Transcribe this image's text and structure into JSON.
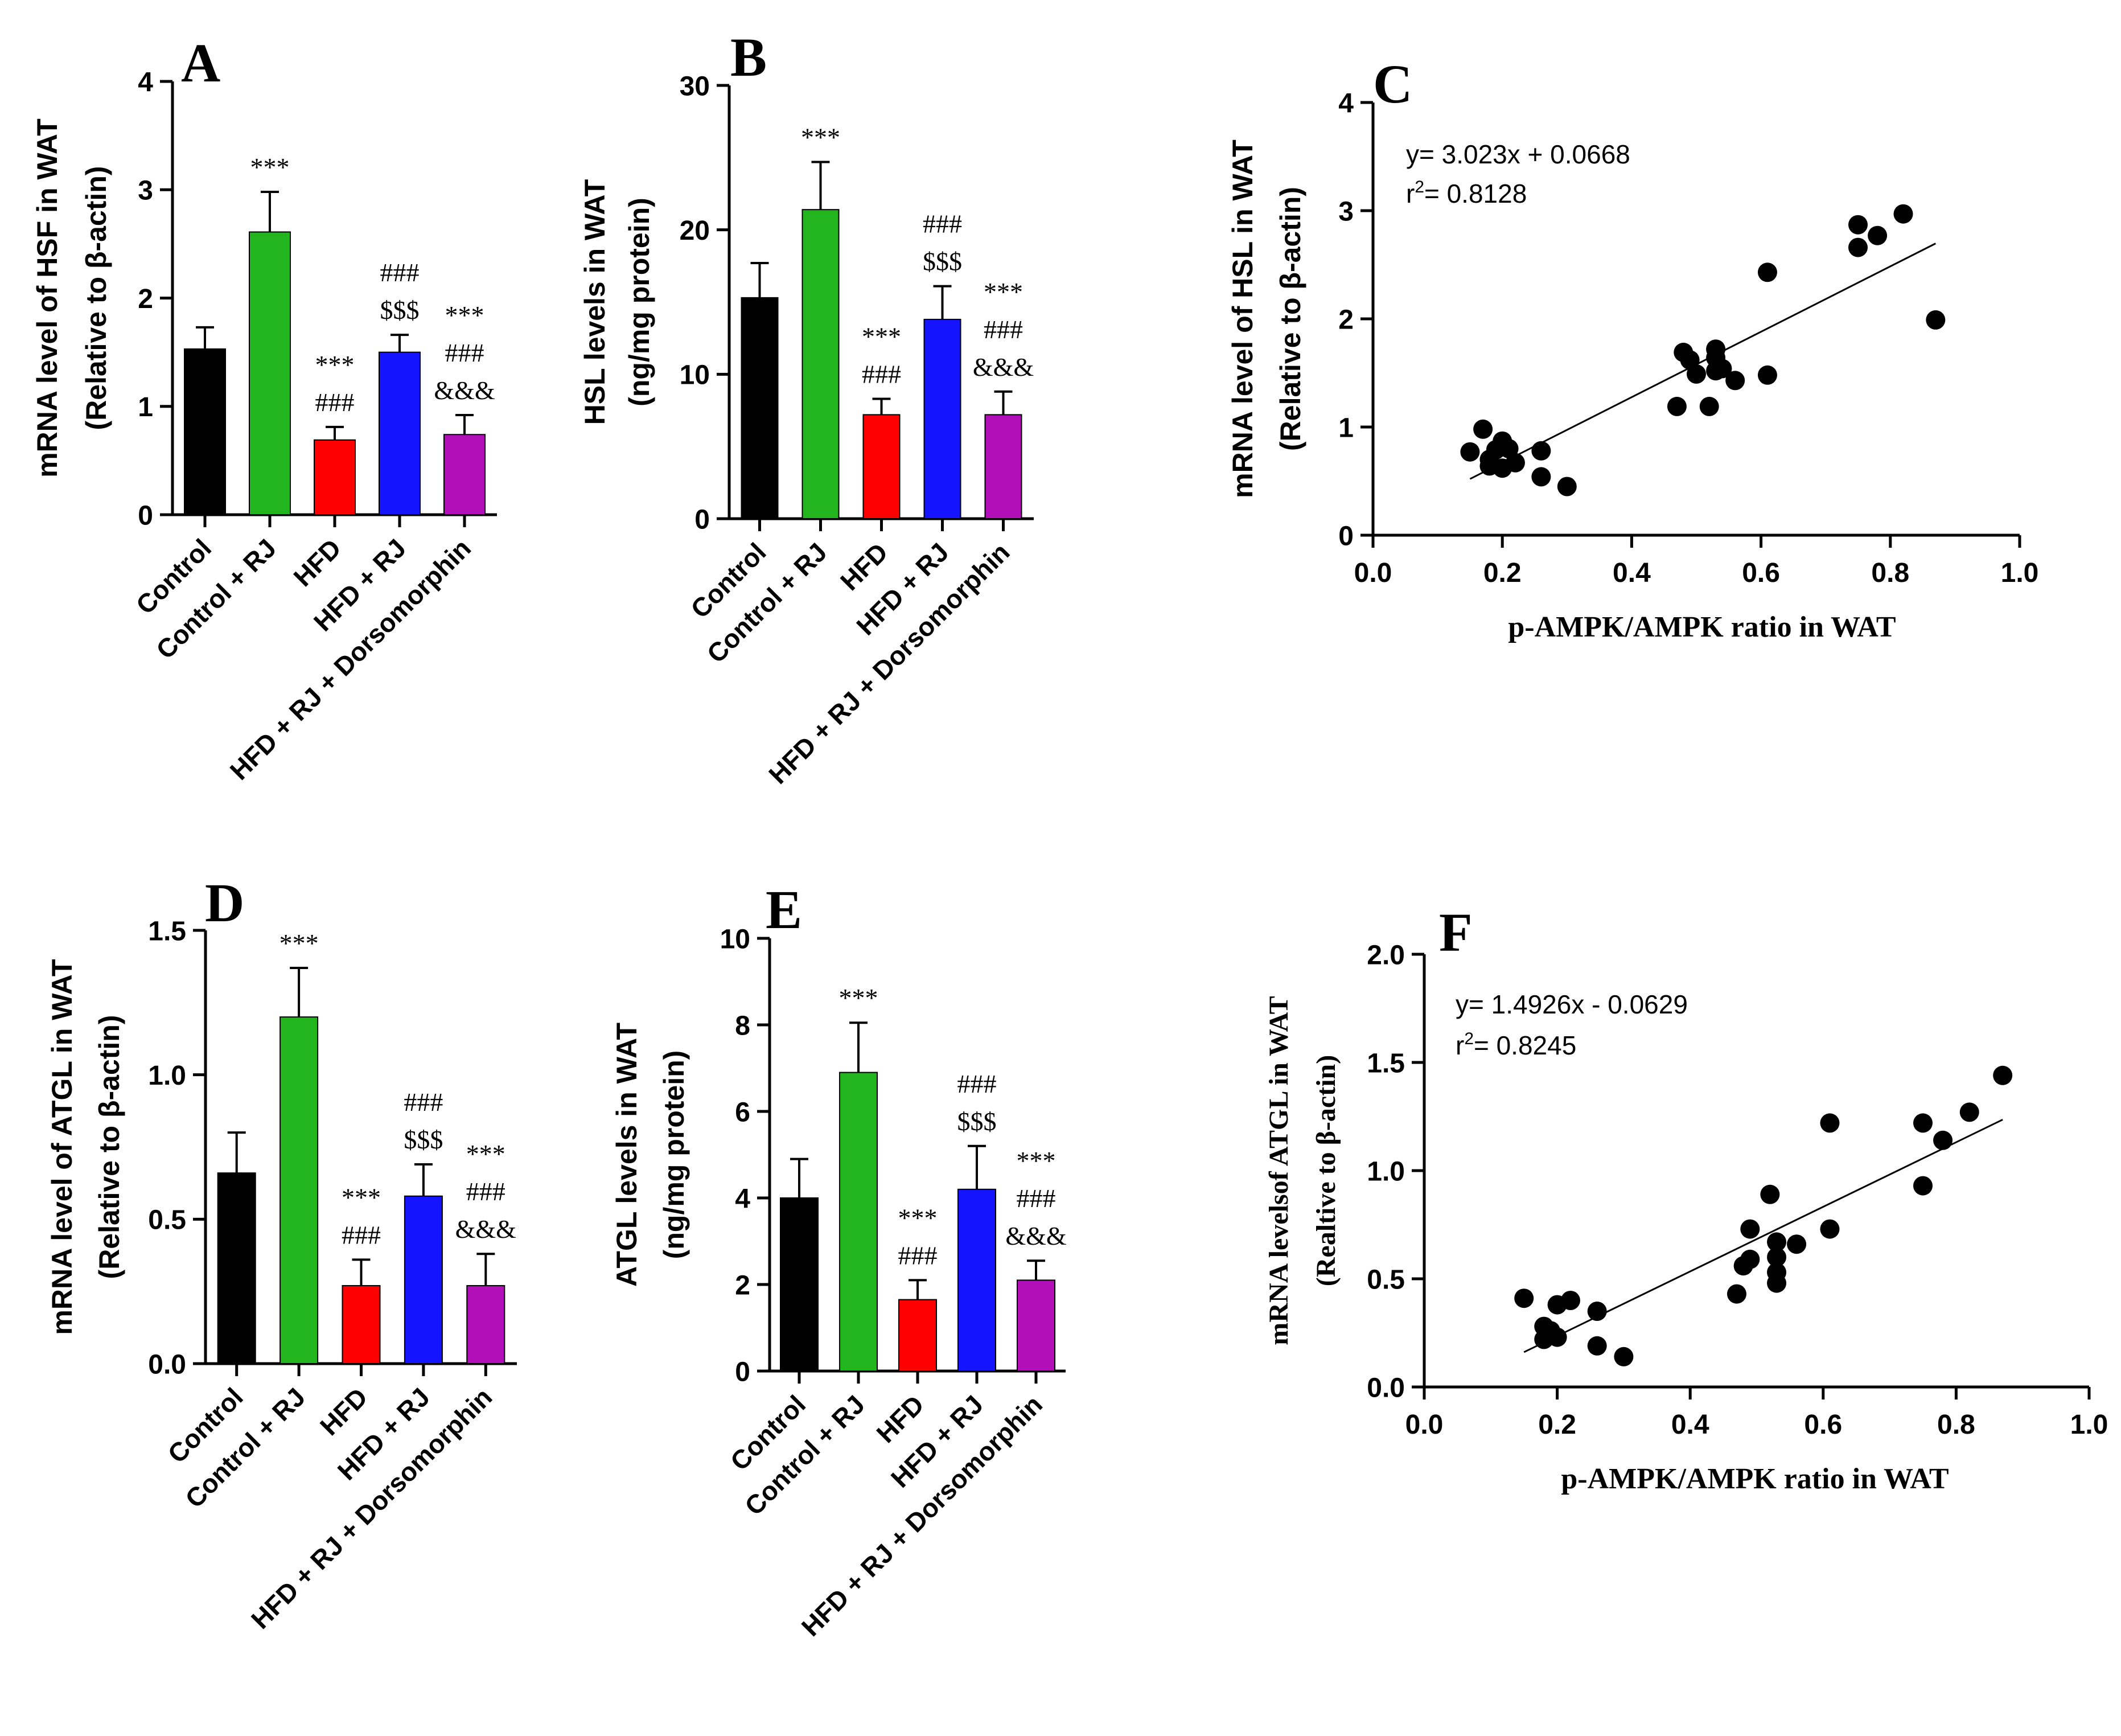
{
  "chart_data": [
    {
      "panel": "A",
      "type": "bar",
      "ylabel_lines": [
        "mRNA level of HSF in WAT",
        "(Relative to β-actin)"
      ],
      "ylim": [
        0,
        4
      ],
      "yticks": [
        0,
        1,
        2,
        3,
        4
      ],
      "categories": [
        "Control",
        "Control + RJ",
        "HFD",
        "HFD + RJ",
        "HFD + RJ + Dorsomorphin"
      ],
      "values": [
        1.53,
        2.61,
        0.69,
        1.5,
        0.74
      ],
      "errors": [
        0.2,
        0.37,
        0.12,
        0.16,
        0.18
      ],
      "colors": [
        "#000000",
        "#22b51d",
        "#ff0000",
        "#1414ff",
        "#b30fb8"
      ],
      "annotations": [
        [],
        [
          "***"
        ],
        [
          "***",
          "###"
        ],
        [
          "###",
          "$$$"
        ],
        [
          "***",
          "###",
          "&&&"
        ]
      ]
    },
    {
      "panel": "B",
      "type": "bar",
      "ylabel_lines": [
        "HSL levels in WAT",
        "(ng/mg protein)"
      ],
      "ylim": [
        0,
        30
      ],
      "yticks": [
        0,
        10,
        20,
        30
      ],
      "categories": [
        "Control",
        "Control + RJ",
        "HFD",
        "HFD + RJ",
        "HFD + RJ + Dorsomorphin"
      ],
      "values": [
        15.3,
        21.4,
        7.2,
        13.8,
        7.2
      ],
      "errors": [
        2.4,
        3.3,
        1.1,
        2.3,
        1.6
      ],
      "colors": [
        "#000000",
        "#22b51d",
        "#ff0000",
        "#1414ff",
        "#b30fb8"
      ],
      "annotations": [
        [],
        [
          "***"
        ],
        [
          "***",
          "###"
        ],
        [
          "###",
          "$$$"
        ],
        [
          "***",
          "###",
          "&&&"
        ]
      ]
    },
    {
      "panel": "C",
      "type": "scatter",
      "xlabel": "p-AMPK/AMPK ratio in  WAT",
      "ylabel_lines": [
        "mRNA level of HSL in WAT",
        "(Relative to β-actin)"
      ],
      "xlim": [
        0,
        1.0
      ],
      "ylim": [
        0,
        4
      ],
      "xticks": [
        "0.0",
        "0.2",
        "0.4",
        "0.6",
        "0.8",
        "1.0"
      ],
      "yticks": [
        0,
        1,
        2,
        3,
        4
      ],
      "equation": "y= 3.023x + 0.0668",
      "r2_prefix": "r",
      "r2_sup": "2",
      "r2_value": "= 0.8128",
      "fit": {
        "slope": 3.023,
        "intercept": 0.0668,
        "x_range": [
          0.15,
          0.87
        ]
      },
      "points": [
        [
          0.15,
          0.77
        ],
        [
          0.17,
          0.98
        ],
        [
          0.18,
          0.7
        ],
        [
          0.18,
          0.64
        ],
        [
          0.19,
          0.79
        ],
        [
          0.2,
          0.87
        ],
        [
          0.2,
          0.62
        ],
        [
          0.21,
          0.8
        ],
        [
          0.22,
          0.67
        ],
        [
          0.26,
          0.78
        ],
        [
          0.26,
          0.54
        ],
        [
          0.3,
          0.45
        ],
        [
          0.47,
          1.19
        ],
        [
          0.48,
          1.69
        ],
        [
          0.49,
          1.62
        ],
        [
          0.5,
          1.49
        ],
        [
          0.52,
          1.19
        ],
        [
          0.53,
          1.72
        ],
        [
          0.53,
          1.64
        ],
        [
          0.53,
          1.52
        ],
        [
          0.54,
          1.54
        ],
        [
          0.56,
          1.43
        ],
        [
          0.61,
          1.48
        ],
        [
          0.61,
          2.43
        ],
        [
          0.75,
          2.87
        ],
        [
          0.75,
          2.66
        ],
        [
          0.78,
          2.77
        ],
        [
          0.82,
          2.97
        ],
        [
          0.87,
          1.99
        ]
      ]
    },
    {
      "panel": "D",
      "type": "bar",
      "ylabel_lines": [
        "mRNA level of ATGL in WAT",
        "(Relative to β-actin)"
      ],
      "ylim": [
        0,
        1.5
      ],
      "yticks": [
        "0.0",
        "0.5",
        "1.0",
        "1.5"
      ],
      "categories": [
        "Control",
        "Control + RJ",
        "HFD",
        "HFD + RJ",
        "HFD + RJ + Dorsomorphin"
      ],
      "values": [
        0.66,
        1.2,
        0.27,
        0.58,
        0.27
      ],
      "errors": [
        0.14,
        0.17,
        0.09,
        0.11,
        0.11
      ],
      "colors": [
        "#000000",
        "#22b51d",
        "#ff0000",
        "#1414ff",
        "#b30fb8"
      ],
      "annotations": [
        [],
        [
          "***"
        ],
        [
          "***",
          "###"
        ],
        [
          "###",
          "$$$"
        ],
        [
          "***",
          "###",
          "&&&"
        ]
      ]
    },
    {
      "panel": "E",
      "type": "bar",
      "ylabel_lines": [
        "ATGL levels in WAT",
        "(ng/mg protein)"
      ],
      "ylim": [
        0,
        10
      ],
      "yticks": [
        0,
        2,
        4,
        6,
        8,
        10
      ],
      "categories": [
        "Control",
        "Control + RJ",
        "HFD",
        "HFD + RJ",
        "HFD + RJ + Dorsomorphin"
      ],
      "values": [
        4.0,
        6.9,
        1.65,
        4.2,
        2.1
      ],
      "errors": [
        0.9,
        1.15,
        0.45,
        1.0,
        0.45
      ],
      "colors": [
        "#000000",
        "#22b51d",
        "#ff0000",
        "#1414ff",
        "#b30fb8"
      ],
      "annotations": [
        [],
        [
          "***"
        ],
        [
          "***",
          "###"
        ],
        [
          "###",
          "$$$"
        ],
        [
          "***",
          "###",
          "&&&"
        ]
      ]
    },
    {
      "panel": "F",
      "type": "scatter",
      "xlabel": "p-AMPK/AMPK ratio in  WAT",
      "ylabel_lines": [
        "mRNA levelsof ATGL in WAT",
        "(Realtive to β-actin)"
      ],
      "xlim": [
        0,
        1.0
      ],
      "ylim": [
        0,
        2.0
      ],
      "xticks": [
        "0.0",
        "0.2",
        "0.4",
        "0.6",
        "0.8",
        "1.0"
      ],
      "yticks": [
        "0.0",
        "0.5",
        "1.0",
        "1.5",
        "2.0"
      ],
      "equation": "y= 1.4926x - 0.0629",
      "r2_prefix": "r",
      "r2_sup": "2",
      "r2_value": "= 0.8245",
      "fit": {
        "slope": 1.4926,
        "intercept": -0.0629,
        "x_range": [
          0.15,
          0.87
        ]
      },
      "points": [
        [
          0.15,
          0.41
        ],
        [
          0.18,
          0.28
        ],
        [
          0.18,
          0.22
        ],
        [
          0.19,
          0.26
        ],
        [
          0.2,
          0.23
        ],
        [
          0.2,
          0.38
        ],
        [
          0.22,
          0.4
        ],
        [
          0.26,
          0.35
        ],
        [
          0.26,
          0.19
        ],
        [
          0.3,
          0.14
        ],
        [
          0.47,
          0.43
        ],
        [
          0.48,
          0.56
        ],
        [
          0.49,
          0.59
        ],
        [
          0.49,
          0.73
        ],
        [
          0.52,
          0.89
        ],
        [
          0.53,
          0.6
        ],
        [
          0.53,
          0.67
        ],
        [
          0.53,
          0.53
        ],
        [
          0.53,
          0.48
        ],
        [
          0.56,
          0.66
        ],
        [
          0.61,
          1.22
        ],
        [
          0.61,
          0.73
        ],
        [
          0.75,
          1.22
        ],
        [
          0.75,
          0.93
        ],
        [
          0.78,
          1.14
        ],
        [
          0.82,
          1.27
        ],
        [
          0.87,
          1.44
        ]
      ]
    }
  ]
}
